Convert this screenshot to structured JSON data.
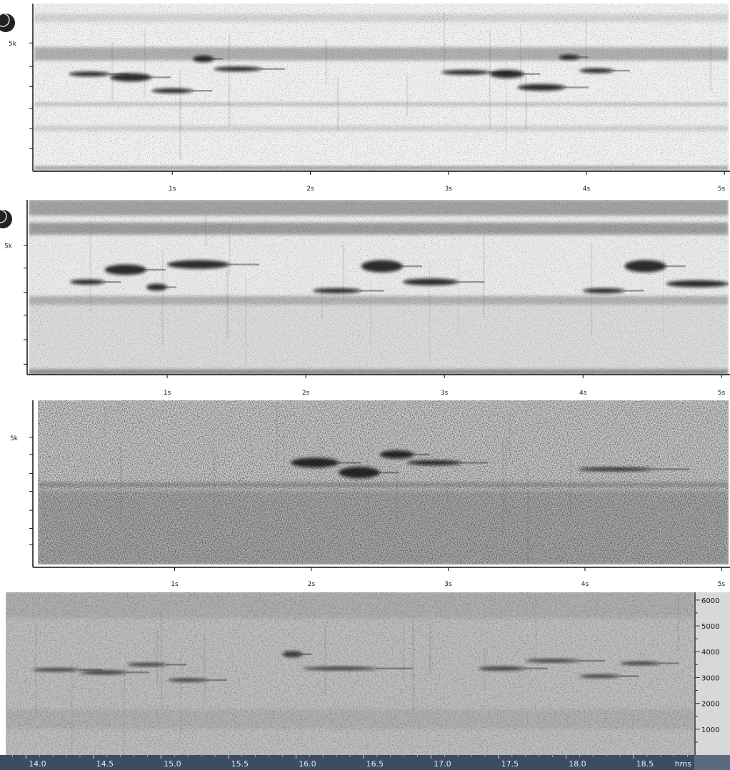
{
  "chart_data": [
    {
      "type": "heatmap",
      "x_ticks": [
        "1s",
        "2s",
        "3s",
        "4s",
        "5s"
      ],
      "x_tick_values": [
        1,
        2,
        3,
        4,
        5
      ],
      "xlim": [
        0,
        5.03
      ],
      "y_ticks": [
        "5k"
      ],
      "style": "light",
      "background": "#f2f2f2",
      "bands": [
        {
          "y": 0.06,
          "h": 0.05,
          "strength": 0.25
        },
        {
          "y": 0.26,
          "h": 0.08,
          "strength": 0.6
        },
        {
          "y": 0.59,
          "h": 0.02,
          "strength": 0.45
        },
        {
          "y": 0.73,
          "h": 0.03,
          "strength": 0.3
        },
        {
          "y": 0.97,
          "h": 0.02,
          "strength": 0.8
        }
      ],
      "calls": [
        {
          "t0": 0.25,
          "t1": 0.55,
          "f": 0.42,
          "w": 0.03
        },
        {
          "t0": 0.55,
          "t1": 0.85,
          "f": 0.44,
          "w": 0.05
        },
        {
          "t0": 0.85,
          "t1": 1.15,
          "f": 0.52,
          "w": 0.03
        },
        {
          "t0": 1.15,
          "t1": 1.3,
          "f": 0.33,
          "w": 0.04
        },
        {
          "t0": 1.3,
          "t1": 1.65,
          "f": 0.39,
          "w": 0.03
        },
        {
          "t0": 2.95,
          "t1": 3.3,
          "f": 0.41,
          "w": 0.03
        },
        {
          "t0": 3.3,
          "t1": 3.55,
          "f": 0.42,
          "w": 0.05
        },
        {
          "t0": 3.5,
          "t1": 3.85,
          "f": 0.5,
          "w": 0.04
        },
        {
          "t0": 3.8,
          "t1": 3.95,
          "f": 0.32,
          "w": 0.03
        },
        {
          "t0": 3.95,
          "t1": 4.2,
          "f": 0.4,
          "w": 0.03
        }
      ]
    },
    {
      "type": "heatmap",
      "x_ticks": [
        "1s",
        "2s",
        "3s",
        "4s",
        "5s"
      ],
      "x_tick_values": [
        1,
        2,
        3,
        4,
        5
      ],
      "xlim": [
        0,
        5.05
      ],
      "y_ticks": [
        "5k"
      ],
      "style": "light",
      "background": "#ececec",
      "bands": [
        {
          "y": 0.0,
          "h": 0.09,
          "strength": 0.7
        },
        {
          "y": 0.13,
          "h": 0.07,
          "strength": 0.75
        },
        {
          "y": 0.55,
          "h": 0.05,
          "strength": 0.55
        },
        {
          "y": 0.6,
          "h": 0.4,
          "strength": 0.15
        },
        {
          "y": 0.97,
          "h": 0.03,
          "strength": 0.8
        }
      ],
      "calls": [
        {
          "t0": 0.3,
          "t1": 0.55,
          "f": 0.47,
          "w": 0.03
        },
        {
          "t0": 0.55,
          "t1": 0.85,
          "f": 0.4,
          "w": 0.06
        },
        {
          "t0": 0.85,
          "t1": 1.0,
          "f": 0.5,
          "w": 0.04
        },
        {
          "t0": 1.0,
          "t1": 1.45,
          "f": 0.37,
          "w": 0.05
        },
        {
          "t0": 2.05,
          "t1": 2.4,
          "f": 0.52,
          "w": 0.03
        },
        {
          "t0": 2.4,
          "t1": 2.7,
          "f": 0.38,
          "w": 0.07
        },
        {
          "t0": 2.7,
          "t1": 3.1,
          "f": 0.47,
          "w": 0.04
        },
        {
          "t0": 4.0,
          "t1": 4.3,
          "f": 0.52,
          "w": 0.03
        },
        {
          "t0": 4.3,
          "t1": 4.6,
          "f": 0.38,
          "w": 0.07
        },
        {
          "t0": 4.6,
          "t1": 5.05,
          "f": 0.48,
          "w": 0.04
        }
      ]
    },
    {
      "type": "heatmap",
      "x_ticks": [
        "1s",
        "2s",
        "3s",
        "4s",
        "5s"
      ],
      "x_tick_values": [
        1,
        2,
        3,
        4,
        5
      ],
      "xlim": [
        0,
        5.05
      ],
      "y_ticks": [
        "5k"
      ],
      "style": "noisy",
      "background": "#d6d6d6",
      "bands": [
        {
          "y": 0.5,
          "h": 0.03,
          "strength": 0.5
        },
        {
          "y": 0.55,
          "h": 0.45,
          "strength": 0.35
        }
      ],
      "calls": [
        {
          "t0": 1.85,
          "t1": 2.2,
          "f": 0.38,
          "w": 0.06
        },
        {
          "t0": 2.2,
          "t1": 2.5,
          "f": 0.44,
          "w": 0.07
        },
        {
          "t0": 2.5,
          "t1": 2.75,
          "f": 0.33,
          "w": 0.05
        },
        {
          "t0": 2.7,
          "t1": 3.1,
          "f": 0.38,
          "w": 0.03
        },
        {
          "t0": 3.95,
          "t1": 4.5,
          "f": 0.42,
          "w": 0.015
        }
      ]
    },
    {
      "type": "heatmap",
      "x_ticks": [
        "14.0",
        "14.5",
        "15.0",
        "15.5",
        "16.0",
        "16.5",
        "17.0",
        "17.5",
        "18.0",
        "18.5"
      ],
      "x_tick_values": [
        14.0,
        14.5,
        15.0,
        15.5,
        16.0,
        16.5,
        17.0,
        17.5,
        18.0,
        18.5
      ],
      "xlim": [
        13.85,
        18.95
      ],
      "x_unit_label": "hms",
      "y_ticks": [
        "6000",
        "5000",
        "4000",
        "3000",
        "2000",
        "1000"
      ],
      "y_tick_values": [
        6000,
        5000,
        4000,
        3000,
        2000,
        1000
      ],
      "ylim": [
        0,
        6300
      ],
      "style": "gray",
      "background": "#bdbdbd",
      "bands": [
        {
          "y": 0.0,
          "h": 0.16,
          "strength": 0.35
        },
        {
          "y": 0.72,
          "h": 0.12,
          "strength": 0.3
        }
      ],
      "calls": [
        {
          "t0": 14.05,
          "t1": 14.4,
          "f": 3300,
          "w": 120
        },
        {
          "t0": 14.4,
          "t1": 14.75,
          "f": 3200,
          "w": 160
        },
        {
          "t0": 14.75,
          "t1": 15.05,
          "f": 3500,
          "w": 80
        },
        {
          "t0": 15.05,
          "t1": 15.35,
          "f": 2900,
          "w": 90
        },
        {
          "t0": 15.9,
          "t1": 16.05,
          "f": 3900,
          "w": 250
        },
        {
          "t0": 16.05,
          "t1": 16.6,
          "f": 3350,
          "w": 110
        },
        {
          "t0": 17.35,
          "t1": 17.7,
          "f": 3350,
          "w": 160
        },
        {
          "t0": 17.7,
          "t1": 18.1,
          "f": 3650,
          "w": 110
        },
        {
          "t0": 18.1,
          "t1": 18.4,
          "f": 3050,
          "w": 120
        },
        {
          "t0": 18.4,
          "t1": 18.7,
          "f": 3550,
          "w": 140
        }
      ]
    }
  ]
}
